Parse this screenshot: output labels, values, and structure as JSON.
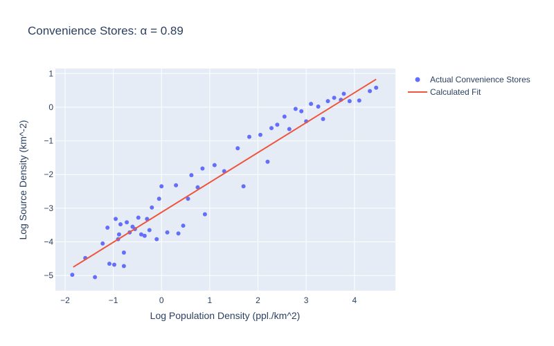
{
  "chart_data": {
    "type": "scatter",
    "title": "Convenience Stores: α = 0.89",
    "xlabel": "Log Population Density (ppl./km^2)",
    "ylabel": "Log Source Density (km^-2)",
    "xlim": [
      -2.2,
      4.85
    ],
    "ylim": [
      -5.45,
      1.15
    ],
    "xticks": [
      -2,
      -1,
      0,
      1,
      2,
      3,
      4
    ],
    "yticks": [
      -5,
      -4,
      -3,
      -2,
      -1,
      0,
      1
    ],
    "tick_labels": {
      "x": [
        "−2",
        "−1",
        "0",
        "1",
        "2",
        "3",
        "4"
      ],
      "y": [
        "−5",
        "−4",
        "−3",
        "−2",
        "−1",
        "0",
        "1"
      ]
    },
    "grid": true,
    "legend_placement": "top-right",
    "series": [
      {
        "name": "Actual Convenience Stores",
        "type": "scatter",
        "color": "#636efa",
        "points": [
          [
            -1.85,
            -4.98
          ],
          [
            -1.58,
            -4.48
          ],
          [
            -1.38,
            -5.05
          ],
          [
            -1.22,
            -4.05
          ],
          [
            -1.08,
            -4.65
          ],
          [
            -0.98,
            -4.68
          ],
          [
            -1.12,
            -3.58
          ],
          [
            -0.9,
            -3.92
          ],
          [
            -0.88,
            -3.78
          ],
          [
            -0.78,
            -4.32
          ],
          [
            -0.78,
            -4.72
          ],
          [
            -0.72,
            -3.42
          ],
          [
            -0.66,
            -3.72
          ],
          [
            -0.95,
            -3.32
          ],
          [
            -0.85,
            -3.48
          ],
          [
            -0.6,
            -3.55
          ],
          [
            -0.55,
            -3.62
          ],
          [
            -0.48,
            -3.28
          ],
          [
            -0.42,
            -3.78
          ],
          [
            -0.35,
            -3.82
          ],
          [
            -0.25,
            -3.65
          ],
          [
            -0.1,
            -3.92
          ],
          [
            0.12,
            -3.72
          ],
          [
            0.35,
            -3.75
          ],
          [
            0.45,
            -3.52
          ],
          [
            -0.3,
            -3.32
          ],
          [
            -0.2,
            -2.98
          ],
          [
            -0.05,
            -2.72
          ],
          [
            0.0,
            -2.35
          ],
          [
            0.3,
            -2.32
          ],
          [
            0.55,
            -2.72
          ],
          [
            0.62,
            -2.02
          ],
          [
            0.75,
            -2.38
          ],
          [
            0.85,
            -1.82
          ],
          [
            0.9,
            -3.18
          ],
          [
            1.1,
            -1.72
          ],
          [
            1.3,
            -1.9
          ],
          [
            1.58,
            -1.22
          ],
          [
            1.7,
            -2.35
          ],
          [
            1.82,
            -0.88
          ],
          [
            2.05,
            -0.82
          ],
          [
            2.2,
            -1.62
          ],
          [
            2.28,
            -0.62
          ],
          [
            2.4,
            -0.52
          ],
          [
            2.55,
            -0.28
          ],
          [
            2.65,
            -0.65
          ],
          [
            2.78,
            -0.05
          ],
          [
            2.9,
            -0.12
          ],
          [
            3.0,
            -0.42
          ],
          [
            3.1,
            0.1
          ],
          [
            3.25,
            0.02
          ],
          [
            3.35,
            -0.35
          ],
          [
            3.45,
            0.18
          ],
          [
            3.58,
            0.28
          ],
          [
            3.72,
            0.22
          ],
          [
            3.78,
            0.4
          ],
          [
            3.9,
            0.18
          ],
          [
            4.1,
            0.2
          ],
          [
            4.32,
            0.48
          ],
          [
            4.45,
            0.58
          ]
        ]
      },
      {
        "name": "Calculated Fit",
        "type": "line",
        "color": "#ef553b",
        "x": [
          -1.83,
          4.45
        ],
        "y": [
          -4.75,
          0.83
        ]
      }
    ]
  }
}
